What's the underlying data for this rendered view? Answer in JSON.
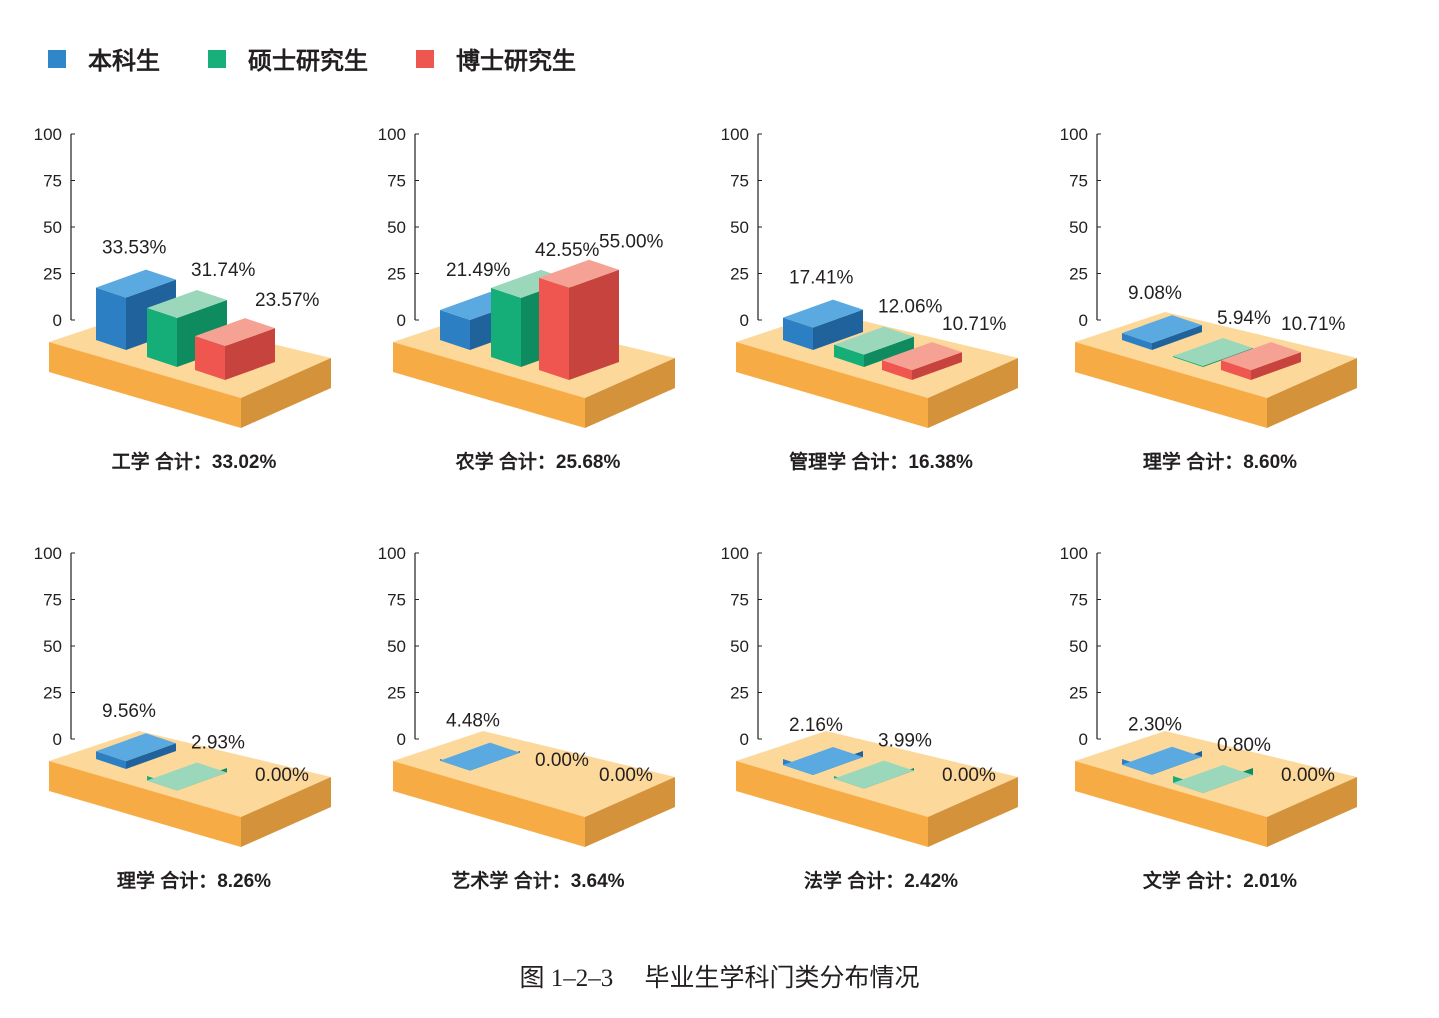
{
  "legend": {
    "items": [
      {
        "label": "本科生",
        "color": "#2f86c8"
      },
      {
        "label": "硕士研究生",
        "color": "#17b07b"
      },
      {
        "label": "博士研究生",
        "color": "#ee5650"
      }
    ]
  },
  "y_ticks": [
    "0",
    "25",
    "50",
    "75",
    "100"
  ],
  "caption": "图 1–2–3　 毕业生学科门类分布情况",
  "platform_colors": {
    "top": "#fcd89a",
    "front": "#f7ab45",
    "side": "#d4923a"
  },
  "chart_data": [
    {
      "type": "bar",
      "title": "工学  合计：33.02%",
      "categories": [
        "本科生",
        "硕士研究生",
        "博士研究生"
      ],
      "values": [
        33.53,
        31.74,
        23.57
      ],
      "labels": [
        "33.53%",
        "31.74%",
        "23.57%"
      ],
      "ylim": [
        0,
        100
      ]
    },
    {
      "type": "bar",
      "title": "农学  合计：25.68%",
      "categories": [
        "本科生",
        "硕士研究生",
        "博士研究生"
      ],
      "values": [
        21.49,
        42.55,
        55.0
      ],
      "labels": [
        "21.49%",
        "42.55%",
        "55.00%"
      ],
      "ylim": [
        0,
        100
      ]
    },
    {
      "type": "bar",
      "title": "管理学  合计：16.38%",
      "categories": [
        "本科生",
        "硕士研究生",
        "博士研究生"
      ],
      "values": [
        17.41,
        12.06,
        10.71
      ],
      "labels": [
        "17.41%",
        "12.06%",
        "10.71%"
      ],
      "ylim": [
        0,
        100
      ]
    },
    {
      "type": "bar",
      "title": "理学  合计：8.60%",
      "categories": [
        "本科生",
        "硕士研究生",
        "博士研究生"
      ],
      "values": [
        9.08,
        5.94,
        10.71
      ],
      "labels": [
        "9.08%",
        "5.94%",
        "10.71%"
      ],
      "ylim": [
        0,
        100
      ]
    },
    {
      "type": "bar",
      "title": "理学  合计：8.26%",
      "categories": [
        "本科生",
        "硕士研究生",
        "博士研究生"
      ],
      "values": [
        9.56,
        2.93,
        0.0
      ],
      "labels": [
        "9.56%",
        "2.93%",
        "0.00%"
      ],
      "ylim": [
        0,
        100
      ]
    },
    {
      "type": "bar",
      "title": "艺术学  合计：3.64%",
      "categories": [
        "本科生",
        "硕士研究生",
        "博士研究生"
      ],
      "values": [
        4.48,
        0.0,
        0.0
      ],
      "labels": [
        "4.48%",
        "0.00%",
        "0.00%"
      ],
      "ylim": [
        0,
        100
      ]
    },
    {
      "type": "bar",
      "title": "法学  合计：2.42%",
      "categories": [
        "本科生",
        "硕士研究生",
        "博士研究生"
      ],
      "values": [
        2.16,
        3.99,
        0.0
      ],
      "labels": [
        "2.16%",
        "3.99%",
        "0.00%"
      ],
      "ylim": [
        0,
        100
      ]
    },
    {
      "type": "bar",
      "title": "文学  合计：2.01%",
      "categories": [
        "本科生",
        "硕士研究生",
        "博士研究生"
      ],
      "values": [
        2.3,
        0.8,
        0.0
      ],
      "labels": [
        "2.30%",
        "0.80%",
        "0.00%"
      ],
      "ylim": [
        0,
        100
      ]
    }
  ]
}
